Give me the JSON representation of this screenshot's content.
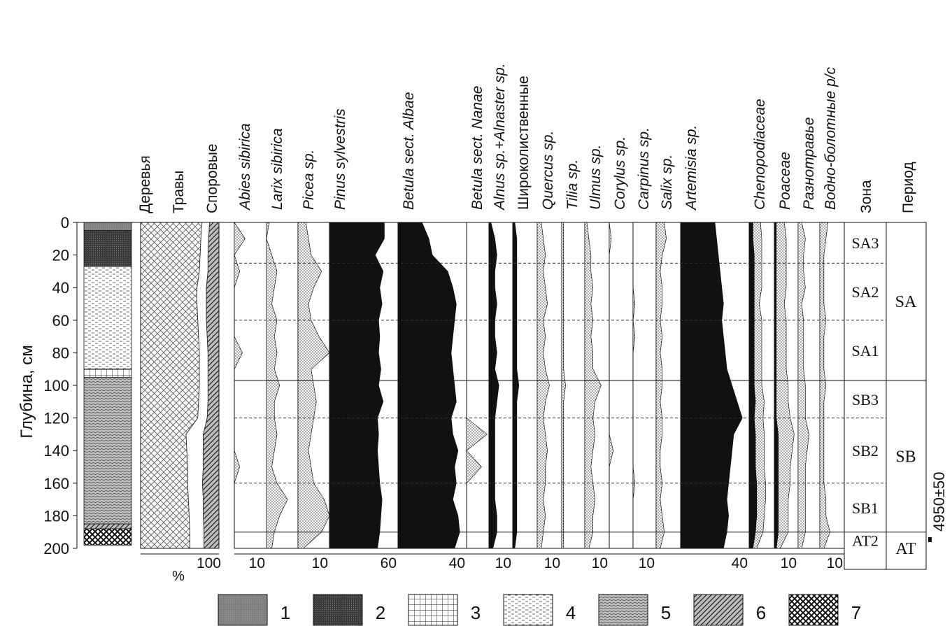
{
  "chart_data": {
    "type": "area",
    "y_axis": {
      "label": "Глубина, см",
      "ticks": [
        "0",
        "20",
        "40",
        "60",
        "80",
        "100",
        "120",
        "140",
        "160",
        "180",
        "200"
      ],
      "range": [
        0,
        200
      ]
    },
    "depths": [
      0,
      10,
      20,
      30,
      40,
      50,
      60,
      70,
      80,
      90,
      100,
      110,
      120,
      130,
      140,
      150,
      160,
      170,
      180,
      190,
      200
    ],
    "lithology_column": [
      {
        "top": 0,
        "bottom": 5,
        "type": 1
      },
      {
        "top": 5,
        "bottom": 27,
        "type": 2
      },
      {
        "top": 27,
        "bottom": 90,
        "type": 4
      },
      {
        "top": 90,
        "bottom": 95,
        "type": 3
      },
      {
        "top": 95,
        "bottom": 185,
        "type": 5
      },
      {
        "top": 185,
        "bottom": 188,
        "type": 6
      },
      {
        "top": 188,
        "bottom": 198,
        "type": 7
      }
    ],
    "summary_diagram": {
      "headers": [
        "Деревья",
        "Травы",
        "Споровые"
      ],
      "axis_unit": "%",
      "axis_max_label": "100",
      "trees_pct": [
        78,
        77,
        76,
        75,
        72,
        72,
        73,
        74,
        75,
        75,
        75,
        74,
        73,
        58,
        59,
        60,
        60,
        61,
        62,
        63,
        63
      ],
      "herbs_pct": [
        10,
        10,
        10,
        11,
        12,
        12,
        11,
        11,
        11,
        11,
        11,
        12,
        12,
        22,
        21,
        20,
        19,
        19,
        18,
        18,
        18
      ]
    },
    "taxa": [
      {
        "name": "Abies sibirica",
        "style": "dotted",
        "scale_label": "10",
        "values": [
          0,
          4,
          0,
          2,
          0,
          0,
          0,
          0,
          3,
          0,
          0,
          0,
          0,
          0,
          0,
          2,
          0,
          0,
          0,
          0,
          0
        ]
      },
      {
        "name": "Larix sibirica",
        "style": "dotted",
        "scale_label": "",
        "values": [
          1,
          0,
          2,
          4,
          3,
          2,
          4,
          3,
          4,
          3,
          5,
          3,
          3,
          4,
          3,
          2,
          4,
          8,
          5,
          3,
          2
        ]
      },
      {
        "name": "Picea sp.",
        "style": "dotted",
        "scale_label": "10",
        "values": [
          3,
          4,
          5,
          9,
          6,
          4,
          5,
          8,
          12,
          5,
          6,
          7,
          6,
          5,
          4,
          5,
          6,
          10,
          14,
          9,
          2
        ]
      },
      {
        "name": "Pinus sylvestris",
        "style": "solid",
        "scale_label": "60",
        "values": [
          48,
          48,
          40,
          47,
          44,
          46,
          43,
          44,
          43,
          45,
          43,
          47,
          42,
          43,
          42,
          43,
          44,
          46,
          45,
          44,
          42
        ]
      },
      {
        "name": "Betula sect. Albae",
        "style": "solid",
        "scale_label": "40",
        "values": [
          14,
          18,
          20,
          29,
          32,
          34,
          33,
          32,
          31,
          32,
          33,
          34,
          31,
          32,
          35,
          33,
          34,
          32,
          35,
          36,
          33
        ]
      },
      {
        "name": "Betula sect. Nanae",
        "style": "dotted",
        "scale_label": "",
        "values": [
          0,
          0,
          0,
          0,
          0,
          0,
          0,
          0,
          0,
          0,
          0,
          0,
          0,
          11,
          0,
          8,
          0,
          0,
          0,
          0,
          0
        ]
      },
      {
        "name": "Alnus sp.+Alnaster sp.",
        "style": "solid",
        "scale_label": "10",
        "values": [
          1,
          3,
          4,
          3,
          3,
          4,
          3,
          3,
          4,
          3,
          5,
          4,
          3,
          3,
          3,
          3,
          3,
          3,
          4,
          4,
          2
        ]
      },
      {
        "name": "Широколиственные",
        "style": "solid",
        "scale_label": "",
        "values": [
          1,
          2,
          2,
          2,
          2,
          2,
          2,
          2,
          2,
          2,
          3,
          2,
          2,
          2,
          2,
          2,
          2,
          2,
          2,
          2,
          1
        ]
      },
      {
        "name": "Quercus sp.",
        "style": "dotted",
        "scale_label": "10",
        "values": [
          2,
          3,
          4,
          3,
          4,
          5,
          3,
          4,
          3,
          4,
          6,
          4,
          3,
          4,
          5,
          4,
          4,
          3,
          4,
          3,
          2
        ]
      },
      {
        "name": "Tilia sp.",
        "style": "dotted",
        "scale_label": "",
        "values": [
          1,
          1,
          1,
          1,
          1,
          1,
          1,
          1,
          1,
          1,
          2,
          1,
          1,
          1,
          1,
          1,
          1,
          1,
          1,
          1,
          1
        ]
      },
      {
        "name": "Ulmus sp.",
        "style": "dotted",
        "scale_label": "10",
        "values": [
          1,
          2,
          3,
          3,
          4,
          3,
          4,
          3,
          4,
          4,
          8,
          5,
          4,
          5,
          4,
          3,
          4,
          5,
          4,
          4,
          2
        ]
      },
      {
        "name": "Corylus sp.",
        "style": "dotted",
        "scale_label": "",
        "values": [
          0,
          1,
          0,
          0,
          0,
          0,
          0,
          0,
          0,
          0,
          0,
          0,
          0,
          0,
          2,
          0,
          0,
          0,
          0,
          0,
          0
        ]
      },
      {
        "name": "Carpinus sp.",
        "style": "dotted",
        "scale_label": "10",
        "values": [
          0,
          0,
          0,
          0,
          0,
          1,
          0,
          1,
          0,
          0,
          0,
          0,
          0,
          0,
          0,
          0,
          1,
          0,
          0,
          0,
          0
        ]
      },
      {
        "name": "Salix sp.",
        "style": "dotted",
        "scale_label": "",
        "values": [
          4,
          5,
          3,
          2,
          3,
          3,
          2,
          3,
          2,
          3,
          3,
          2,
          3,
          3,
          2,
          2,
          3,
          2,
          3,
          4,
          2
        ]
      },
      {
        "name": "Artemisia sp.",
        "style": "solid",
        "scale_label": "40",
        "values": [
          20,
          21,
          22,
          23,
          24,
          25,
          24,
          25,
          26,
          27,
          30,
          33,
          36,
          31,
          30,
          29,
          28,
          27,
          28,
          27,
          25
        ]
      },
      {
        "name": "Chenopodiaceae",
        "style": "mixed",
        "scale_label": "",
        "solid": [
          3,
          3,
          4,
          4,
          4,
          4,
          4,
          4,
          4,
          4,
          4,
          5,
          4,
          5,
          5,
          5,
          6,
          6,
          6,
          5,
          3
        ],
        "dotted": [
          6,
          7,
          6,
          6,
          6,
          4,
          6,
          6,
          6,
          6,
          6,
          7,
          7,
          7,
          7,
          7,
          7,
          7,
          6,
          6,
          3
        ]
      },
      {
        "name": "Poaceae",
        "style": "mixed",
        "scale_label": "10",
        "solid": [
          1,
          1,
          1,
          1,
          1,
          1,
          1,
          1,
          1,
          1,
          1,
          1,
          1,
          2,
          2,
          2,
          2,
          2,
          2,
          2,
          1
        ],
        "dotted": [
          4,
          5,
          5,
          5,
          5,
          4,
          5,
          5,
          5,
          5,
          6,
          6,
          7,
          8,
          7,
          6,
          6,
          5,
          5,
          5,
          2
        ]
      },
      {
        "name": "Разнотравье",
        "style": "dotted",
        "scale_label": "",
        "values": [
          2,
          4,
          3,
          3,
          4,
          2,
          3,
          3,
          3,
          3,
          4,
          4,
          4,
          6,
          5,
          4,
          4,
          4,
          4,
          4,
          2
        ]
      },
      {
        "name": "Водно-болотные р/с",
        "style": "dotted",
        "scale_label": "10",
        "values": [
          4,
          3,
          2,
          2,
          2,
          2,
          3,
          2,
          2,
          2,
          3,
          2,
          2,
          2,
          2,
          2,
          2,
          3,
          3,
          5,
          2
        ]
      }
    ],
    "zone_header": "Зона",
    "period_header": "Период",
    "zones": [
      {
        "label": "SA3",
        "top": 0,
        "bottom": 25,
        "boundary": "dashed"
      },
      {
        "label": "SA2",
        "top": 25,
        "bottom": 60,
        "boundary": "dashed"
      },
      {
        "label": "SA1",
        "top": 60,
        "bottom": 97,
        "boundary": "solid"
      },
      {
        "label": "SB3",
        "top": 97,
        "bottom": 120,
        "boundary": "dashed"
      },
      {
        "label": "SB2",
        "top": 120,
        "bottom": 160,
        "boundary": "dashed"
      },
      {
        "label": "SB1",
        "top": 160,
        "bottom": 190,
        "boundary": "solid"
      },
      {
        "label": "AT2",
        "top": 190,
        "bottom": 200,
        "boundary": "none"
      }
    ],
    "periods": [
      {
        "label": "SA",
        "top": 0,
        "bottom": 97
      },
      {
        "label": "SB",
        "top": 97,
        "bottom": 190
      },
      {
        "label": "AT",
        "top": 190,
        "bottom": 210
      }
    ],
    "date_label": "4950±50",
    "legend": [
      "1",
      "2",
      "3",
      "4",
      "5",
      "6",
      "7"
    ]
  }
}
